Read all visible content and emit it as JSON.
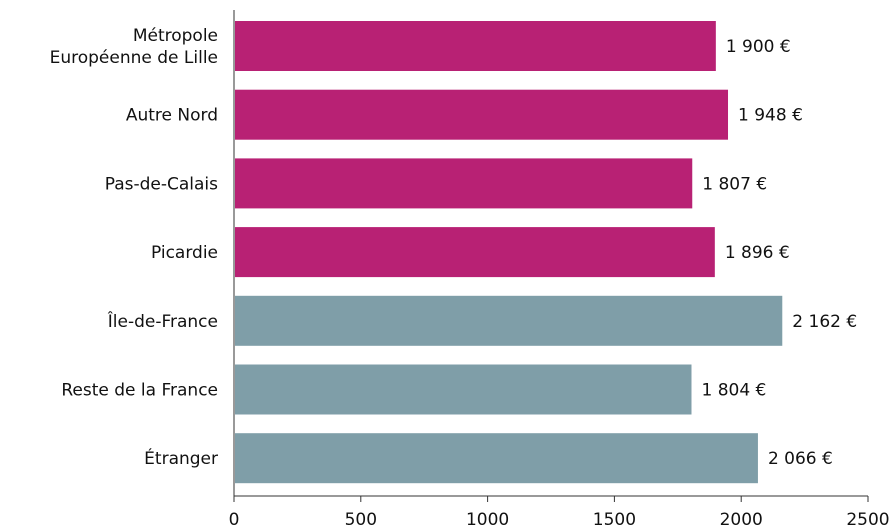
{
  "chart_data": {
    "type": "bar",
    "orientation": "horizontal",
    "categories": [
      [
        "Métropole",
        "Européenne de Lille"
      ],
      [
        "Autre Nord"
      ],
      [
        "Pas-de-Calais"
      ],
      [
        "Picardie"
      ],
      [
        "Île-de-France"
      ],
      [
        "Reste de la France"
      ],
      [
        "Étranger"
      ]
    ],
    "values": [
      1900,
      1948,
      1807,
      1896,
      2162,
      1804,
      2066
    ],
    "value_labels": [
      "1 900 €",
      "1 948 €",
      "1 807 €",
      "1 896 €",
      "2 162 €",
      "1 804 €",
      "2 066 €"
    ],
    "bar_colors": [
      "#b82174",
      "#b82174",
      "#b82174",
      "#b82174",
      "#7f9ea8",
      "#7f9ea8",
      "#7f9ea8"
    ],
    "xlim": [
      0,
      2500
    ],
    "x_ticks": [
      0,
      500,
      1000,
      1500,
      2000,
      2500
    ],
    "x_tick_labels": [
      "0",
      "500",
      "1000",
      "1500",
      "2000",
      "2500"
    ],
    "grid": false,
    "title": "",
    "xlabel": "",
    "ylabel": ""
  }
}
